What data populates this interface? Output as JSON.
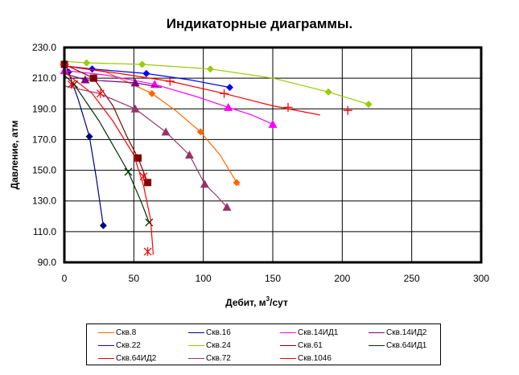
{
  "chart_data": {
    "type": "line",
    "title": "Индикаторные диаграммы.",
    "xlabel": "Дебит, м",
    "xlabel_sup": "3",
    "xlabel_tail": "/сут",
    "ylabel": "Давление, атм",
    "xlim": [
      0,
      300
    ],
    "ylim": [
      90,
      230
    ],
    "x_ticks": [
      "0",
      "50",
      "100",
      "150",
      "200",
      "250",
      "300"
    ],
    "y_ticks": [
      "90.0",
      "110.0",
      "130.0",
      "150.0",
      "170.0",
      "190.0",
      "210.0",
      "230.0"
    ],
    "grid": true,
    "legend_position": "bottom",
    "series": [
      {
        "name": "Скв.8",
        "color": "#ff6600",
        "marker": "diamond",
        "points": [
          [
            0,
            218
          ],
          [
            63,
            200
          ],
          [
            98,
            175
          ],
          [
            124,
            142
          ]
        ],
        "curve": [
          [
            0,
            218
          ],
          [
            30,
            214
          ],
          [
            63,
            200
          ],
          [
            80,
            189
          ],
          [
            98,
            175
          ],
          [
            112,
            160
          ],
          [
            124,
            142
          ],
          [
            126,
            140
          ]
        ]
      },
      {
        "name": "Скв.16",
        "color": "#000080",
        "marker": "diamond",
        "points": [
          [
            3,
            214
          ],
          [
            18,
            172
          ],
          [
            28,
            114
          ]
        ],
        "curve": [
          [
            0,
            220
          ],
          [
            3,
            214
          ],
          [
            10,
            196
          ],
          [
            18,
            172
          ],
          [
            23,
            145
          ],
          [
            28,
            114
          ]
        ]
      },
      {
        "name": "Скв.14ИД1",
        "color": "#ff00ff",
        "marker": "triangle",
        "points": [
          [
            0,
            215
          ],
          [
            65,
            206
          ],
          [
            118,
            191
          ],
          [
            150,
            180
          ]
        ],
        "curve": [
          [
            0,
            215
          ],
          [
            30,
            212
          ],
          [
            65,
            206
          ],
          [
            95,
            198
          ],
          [
            118,
            191
          ],
          [
            135,
            186
          ],
          [
            150,
            180
          ]
        ]
      },
      {
        "name": "Скв.14ИД2",
        "color": "#800080",
        "marker": "triangle",
        "points": [
          [
            15,
            209
          ],
          [
            51,
            207
          ]
        ],
        "curve": [
          [
            0,
            213
          ],
          [
            15,
            209
          ],
          [
            51,
            207
          ],
          [
            70,
            204
          ]
        ]
      },
      {
        "name": "Скв.22",
        "color": "#0000ff",
        "marker": "diamond",
        "points": [
          [
            20,
            216
          ],
          [
            59,
            213
          ],
          [
            119,
            204
          ]
        ],
        "curve": [
          [
            0,
            218
          ],
          [
            20,
            216
          ],
          [
            59,
            213
          ],
          [
            90,
            209
          ],
          [
            119,
            204
          ]
        ]
      },
      {
        "name": "Скв.24",
        "color": "#99cc00",
        "marker": "diamond",
        "points": [
          [
            16,
            220
          ],
          [
            56,
            219
          ],
          [
            105,
            216
          ],
          [
            190,
            201
          ],
          [
            219,
            193
          ]
        ],
        "curve": [
          [
            0,
            221
          ],
          [
            16,
            220
          ],
          [
            56,
            219
          ],
          [
            105,
            216
          ],
          [
            150,
            210
          ],
          [
            190,
            201
          ],
          [
            219,
            193
          ]
        ]
      },
      {
        "name": "Скв.61",
        "color": "#800000",
        "marker": "square",
        "points": [
          [
            0,
            219
          ],
          [
            21,
            210
          ],
          [
            53,
            158
          ],
          [
            60,
            142
          ]
        ],
        "curve": [
          [
            0,
            219
          ],
          [
            21,
            210
          ],
          [
            35,
            192
          ],
          [
            45,
            172
          ],
          [
            53,
            158
          ],
          [
            60,
            142
          ]
        ]
      },
      {
        "name": "Скв.64ИД1",
        "color": "#003300",
        "marker": "x",
        "points": [
          [
            7,
            206
          ],
          [
            46,
            149
          ],
          [
            61,
            116
          ]
        ],
        "curve": [
          [
            0,
            212
          ],
          [
            7,
            206
          ],
          [
            25,
            182
          ],
          [
            46,
            149
          ],
          [
            55,
            130
          ],
          [
            61,
            116
          ]
        ]
      },
      {
        "name": "Скв.64ИД2",
        "color": "#ff0000",
        "marker": "asterisk",
        "points": [
          [
            5,
            206
          ],
          [
            26,
            200
          ],
          [
            57,
            146
          ],
          [
            60,
            97
          ]
        ],
        "curve": [
          [
            0,
            214
          ],
          [
            20,
            200
          ],
          [
            35,
            182
          ],
          [
            50,
            160
          ],
          [
            57,
            140
          ],
          [
            62,
            118
          ],
          [
            64,
            95
          ]
        ]
      },
      {
        "name": "Скв.72",
        "color": "#993366",
        "marker": "triangle",
        "points": [
          [
            51,
            190
          ],
          [
            73,
            175
          ],
          [
            90,
            160
          ],
          [
            101,
            141
          ],
          [
            117,
            126
          ]
        ],
        "curve": [
          [
            0,
            205
          ],
          [
            25,
            200
          ],
          [
            51,
            190
          ],
          [
            73,
            175
          ],
          [
            90,
            160
          ],
          [
            101,
            141
          ],
          [
            110,
            133
          ],
          [
            117,
            126
          ]
        ]
      },
      {
        "name": "Скв.1046",
        "color": "#ff0000",
        "marker": "plus",
        "points": [
          [
            0,
            219
          ],
          [
            76,
            208
          ],
          [
            115,
            200
          ],
          [
            161,
            191
          ],
          [
            204,
            189
          ]
        ],
        "curve": [
          [
            0,
            218
          ],
          [
            40,
            213
          ],
          [
            76,
            208
          ],
          [
            115,
            200
          ],
          [
            150,
            192
          ],
          [
            184,
            186
          ]
        ]
      }
    ]
  }
}
